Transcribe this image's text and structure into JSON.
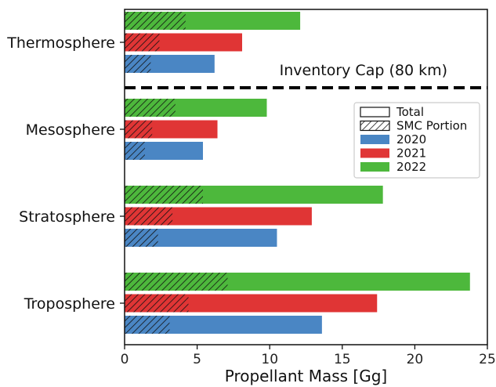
{
  "chart_data": {
    "type": "bar",
    "orientation": "horizontal",
    "xlabel": "Propellant Mass [Gg]",
    "xlim": [
      0,
      25
    ],
    "xticks": [
      0,
      5,
      10,
      15,
      20,
      25
    ],
    "categories": [
      "Thermosphere",
      "Mesosphere",
      "Stratosphere",
      "Troposphere"
    ],
    "series": [
      {
        "name": "2020",
        "color": "#4a86c4",
        "total": [
          6.2,
          5.4,
          10.5,
          13.6
        ],
        "smc": [
          1.8,
          1.4,
          2.3,
          3.1
        ]
      },
      {
        "name": "2021",
        "color": "#e03535",
        "total": [
          8.1,
          6.4,
          12.9,
          17.4
        ],
        "smc": [
          2.4,
          1.9,
          3.3,
          4.4
        ]
      },
      {
        "name": "2022",
        "color": "#4db83c",
        "total": [
          12.1,
          9.8,
          17.8,
          23.8
        ],
        "smc": [
          4.2,
          3.5,
          5.4,
          7.1
        ]
      }
    ],
    "legend": {
      "position": "right",
      "entries": [
        "Total",
        "SMC Portion",
        "2020",
        "2021",
        "2022"
      ]
    },
    "annotation": {
      "text": "Inventory Cap (80 km)",
      "line_style": "dashed"
    }
  }
}
